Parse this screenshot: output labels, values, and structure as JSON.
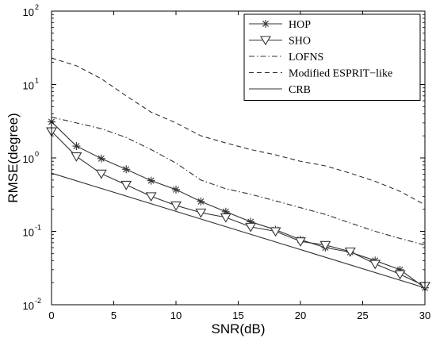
{
  "chart_data": {
    "type": "line",
    "xlabel": "SNR(dB)",
    "ylabel": "RMSE(degree)",
    "xlim": [
      0,
      30
    ],
    "ylim": [
      0.01,
      100
    ],
    "yscale": "log",
    "grid": false,
    "legend_position": "top-right",
    "x_ticks": [
      "0",
      "5",
      "10",
      "15",
      "20",
      "25",
      "30"
    ],
    "y_ticks": [
      {
        "base": "10",
        "exp": "-2"
      },
      {
        "base": "10",
        "exp": "-1"
      },
      {
        "base": "10",
        "exp": "0"
      },
      {
        "base": "10",
        "exp": "1"
      },
      {
        "base": "10",
        "exp": "2"
      }
    ],
    "series": [
      {
        "name": "HOP",
        "marker": "star",
        "dash": "solid",
        "x": [
          0,
          2,
          4,
          6,
          8,
          10,
          12,
          14,
          16,
          18,
          20,
          22,
          24,
          26,
          28,
          30
        ],
        "y": [
          3.1,
          1.45,
          0.98,
          0.7,
          0.49,
          0.37,
          0.255,
          0.185,
          0.135,
          0.105,
          0.077,
          0.06,
          0.052,
          0.04,
          0.03,
          0.017
        ]
      },
      {
        "name": "SHO",
        "marker": "triangle-down",
        "dash": "solid",
        "x": [
          0,
          2,
          4,
          6,
          8,
          10,
          12,
          14,
          16,
          18,
          20,
          22,
          24,
          26,
          28,
          30
        ],
        "y": [
          2.3,
          1.05,
          0.61,
          0.43,
          0.3,
          0.225,
          0.18,
          0.155,
          0.115,
          0.1,
          0.073,
          0.065,
          0.053,
          0.036,
          0.026,
          0.018
        ]
      },
      {
        "name": "LOFNS",
        "marker": "none",
        "dash": "dashdot",
        "x": [
          0,
          2,
          4,
          6,
          8,
          10,
          12,
          14,
          16,
          18,
          20,
          22,
          24,
          26,
          28,
          30
        ],
        "y": [
          3.6,
          3.0,
          2.5,
          1.9,
          1.3,
          0.85,
          0.5,
          0.38,
          0.32,
          0.26,
          0.21,
          0.17,
          0.13,
          0.1,
          0.08,
          0.065
        ]
      },
      {
        "name": "Modified ESPRIT−like",
        "marker": "none",
        "dash": "dashed",
        "x": [
          0,
          2,
          4,
          6,
          8,
          10,
          12,
          14,
          16,
          18,
          20,
          22,
          24,
          26,
          28,
          30
        ],
        "y": [
          23,
          18,
          12,
          7,
          4.2,
          3.0,
          2.0,
          1.6,
          1.3,
          1.1,
          0.9,
          0.78,
          0.62,
          0.48,
          0.35,
          0.23
        ]
      },
      {
        "name": "CRB",
        "marker": "none",
        "dash": "solid",
        "x": [
          0,
          30
        ],
        "y": [
          0.62,
          0.017
        ]
      }
    ]
  }
}
